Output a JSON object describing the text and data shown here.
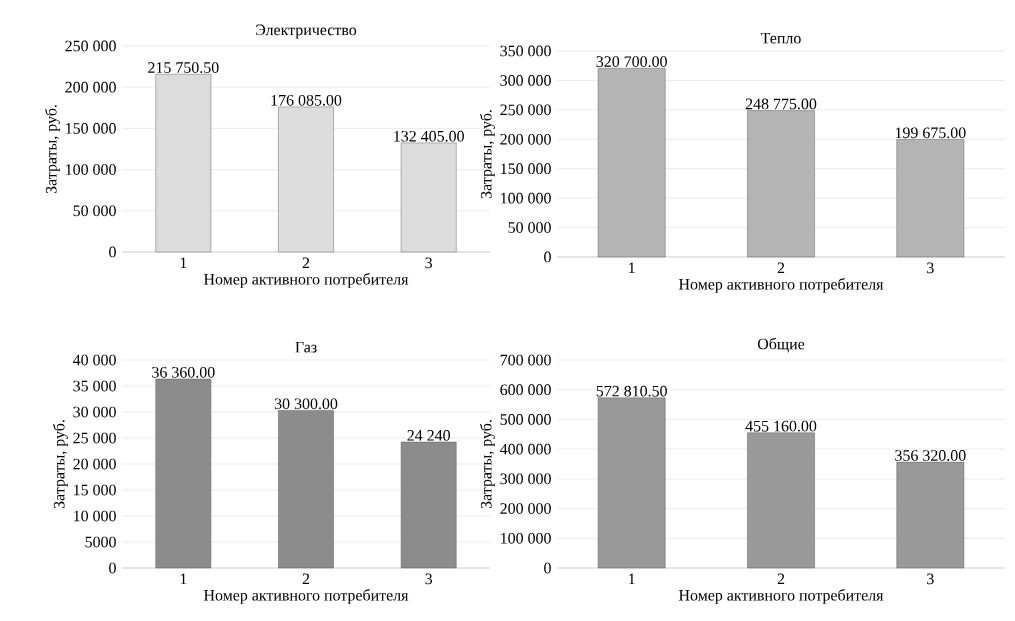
{
  "chart_data": [
    {
      "type": "bar",
      "title": "Электричество",
      "xlabel": "Номер активного потребителя",
      "ylabel": "Затраты, руб.",
      "categories": [
        "1",
        "2",
        "3"
      ],
      "values": [
        215750.5,
        176085.0,
        132405.0
      ],
      "value_labels": [
        "215 750.50",
        "176 085.00",
        "132 405.00"
      ],
      "color": "#dcdcdc",
      "ylim": [
        0,
        250000
      ],
      "yticks": [
        0,
        {
          "value": 50000,
          "label": "50 000"
        },
        {
          "value": 100000,
          "label": "100 000"
        },
        {
          "value": 150000,
          "label": "150 000"
        },
        {
          "value": 200000,
          "label": "200 000"
        },
        {
          "value": 250000,
          "label": "250 000"
        }
      ],
      "grid": "y"
    },
    {
      "type": "bar",
      "title": "Тепло",
      "xlabel": "Номер активного потребителя",
      "ylabel": "Затраты, руб.",
      "categories": [
        "1",
        "2",
        "3"
      ],
      "values": [
        320700.0,
        248775.0,
        199675.0
      ],
      "value_labels": [
        "320 700.00",
        "248 775.00",
        "199 675.00"
      ],
      "color": "#b4b4b4",
      "ylim": [
        0,
        350000
      ],
      "yticks": [
        0,
        {
          "value": 50000,
          "label": "50 000"
        },
        {
          "value": 100000,
          "label": "100 000"
        },
        {
          "value": 150000,
          "label": "150 000"
        },
        {
          "value": 200000,
          "label": "200 000"
        },
        {
          "value": 250000,
          "label": "250 000"
        },
        {
          "value": 300000,
          "label": "300 000"
        },
        {
          "value": 350000,
          "label": "350 000"
        }
      ],
      "grid": "y"
    },
    {
      "type": "bar",
      "title": "Газ",
      "xlabel": "Номер активного потребителя",
      "ylabel": "Затраты, руб.",
      "categories": [
        "1",
        "2",
        "3"
      ],
      "values": [
        36360.0,
        30300.0,
        24240
      ],
      "value_labels": [
        "36 360.00",
        "30 300.00",
        "24 240"
      ],
      "color": "#8c8c8c",
      "ylim": [
        0,
        40000
      ],
      "yticks": [
        0,
        5000,
        {
          "value": 10000,
          "label": "10 000"
        },
        {
          "value": 15000,
          "label": "15 000"
        },
        {
          "value": 20000,
          "label": "20 000"
        },
        {
          "value": 25000,
          "label": "25 000"
        },
        {
          "value": 30000,
          "label": "30 000"
        },
        {
          "value": 35000,
          "label": "35 000"
        },
        {
          "value": 40000,
          "label": "40 000"
        }
      ],
      "grid": "y"
    },
    {
      "type": "bar",
      "title": "Общие",
      "xlabel": "Номер активного потребителя",
      "ylabel": "Затраты, руб.",
      "categories": [
        "1",
        "2",
        "3"
      ],
      "values": [
        572810.5,
        455160.0,
        356320.0
      ],
      "value_labels": [
        "572 810.50",
        "455 160.00",
        "356 320.00"
      ],
      "color": "#999999",
      "ylim": [
        0,
        700000
      ],
      "yticks": [
        0,
        {
          "value": 100000,
          "label": "100 000"
        },
        {
          "value": 200000,
          "label": "200 000"
        },
        {
          "value": 300000,
          "label": "300 000"
        },
        {
          "value": 400000,
          "label": "400 000"
        },
        {
          "value": 500000,
          "label": "500 000"
        },
        {
          "value": 600000,
          "label": "600 000"
        },
        {
          "value": 700000,
          "label": "700 000"
        }
      ],
      "grid": "y"
    }
  ]
}
